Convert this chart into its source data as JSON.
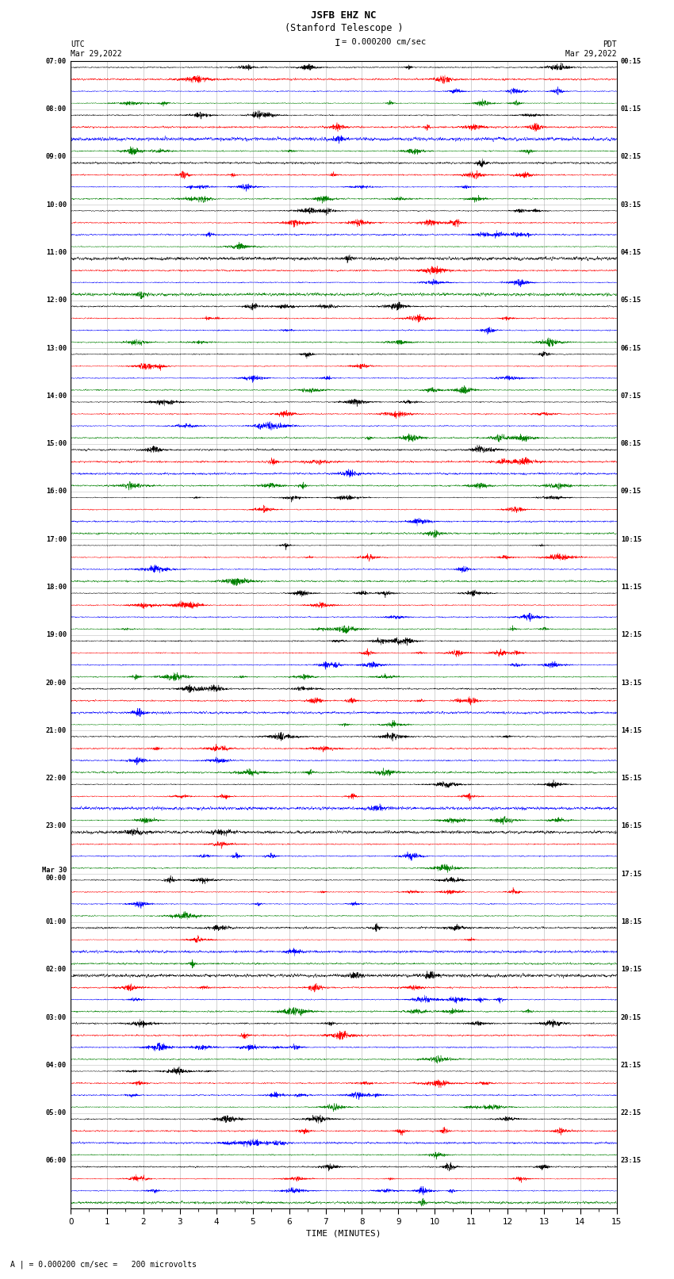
{
  "title_line1": "JSFB EHZ NC",
  "title_line2": "(Stanford Telescope )",
  "scale_label": "= 0.000200 cm/sec",
  "left_label_top": "UTC",
  "left_label_date": "Mar 29,2022",
  "right_label_top": "PDT",
  "right_label_date": "Mar 29,2022",
  "bottom_label": "TIME (MINUTES)",
  "footer_text": "A | = 0.000200 cm/sec =   200 microvolts",
  "xlabel_ticks": [
    0,
    1,
    2,
    3,
    4,
    5,
    6,
    7,
    8,
    9,
    10,
    11,
    12,
    13,
    14,
    15
  ],
  "trace_colors": [
    "black",
    "red",
    "blue",
    "green"
  ],
  "background_color": "white",
  "left_times": [
    "07:00",
    "",
    "",
    "",
    "08:00",
    "",
    "",
    "",
    "09:00",
    "",
    "",
    "",
    "10:00",
    "",
    "",
    "",
    "11:00",
    "",
    "",
    "",
    "12:00",
    "",
    "",
    "",
    "13:00",
    "",
    "",
    "",
    "14:00",
    "",
    "",
    "",
    "15:00",
    "",
    "",
    "",
    "16:00",
    "",
    "",
    "",
    "17:00",
    "",
    "",
    "",
    "18:00",
    "",
    "",
    "",
    "19:00",
    "",
    "",
    "",
    "20:00",
    "",
    "",
    "",
    "21:00",
    "",
    "",
    "",
    "22:00",
    "",
    "",
    "",
    "23:00",
    "",
    "",
    "",
    "Mar 30\n00:00",
    "",
    "",
    "",
    "01:00",
    "",
    "",
    "",
    "02:00",
    "",
    "",
    "",
    "03:00",
    "",
    "",
    "",
    "04:00",
    "",
    "",
    "",
    "05:00",
    "",
    "",
    "",
    "06:00",
    "",
    "",
    ""
  ],
  "right_times": [
    "00:15",
    "",
    "",
    "",
    "01:15",
    "",
    "",
    "",
    "02:15",
    "",
    "",
    "",
    "03:15",
    "",
    "",
    "",
    "04:15",
    "",
    "",
    "",
    "05:15",
    "",
    "",
    "",
    "06:15",
    "",
    "",
    "",
    "07:15",
    "",
    "",
    "",
    "08:15",
    "",
    "",
    "",
    "09:15",
    "",
    "",
    "",
    "10:15",
    "",
    "",
    "",
    "11:15",
    "",
    "",
    "",
    "12:15",
    "",
    "",
    "",
    "13:15",
    "",
    "",
    "",
    "14:15",
    "",
    "",
    "",
    "15:15",
    "",
    "",
    "",
    "16:15",
    "",
    "",
    "",
    "17:15",
    "",
    "",
    "",
    "18:15",
    "",
    "",
    "",
    "19:15",
    "",
    "",
    "",
    "20:15",
    "",
    "",
    "",
    "21:15",
    "",
    "",
    "",
    "22:15",
    "",
    "",
    "",
    "23:15",
    "",
    "",
    ""
  ],
  "num_rows": 24,
  "traces_per_row": 4,
  "minutes_per_trace": 15,
  "fig_width": 8.5,
  "fig_height": 16.13,
  "fig_dpi": 100
}
